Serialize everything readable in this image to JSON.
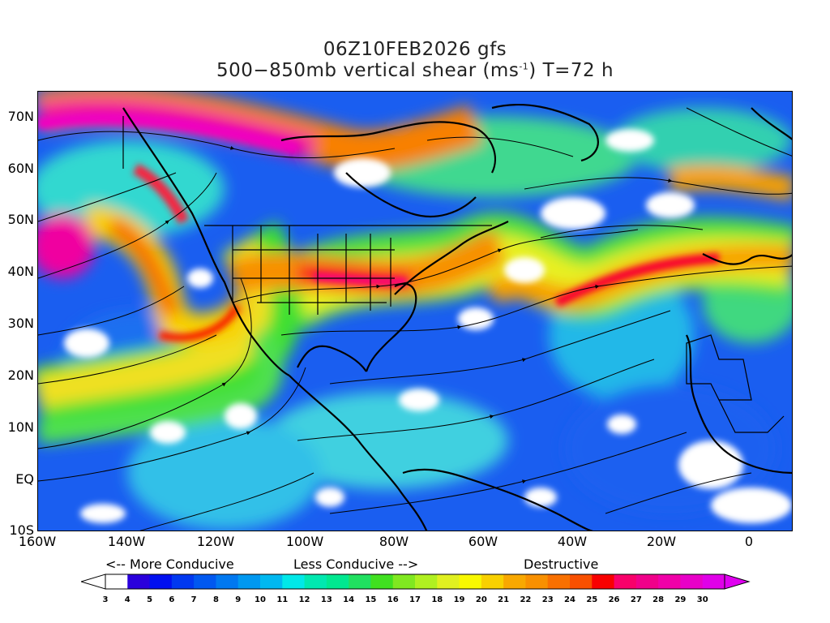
{
  "header": {
    "title_line1": "06Z10FEB2026 gfs",
    "title_line2_prefix": "500−850mb vertical shear (ms",
    "title_line2_sup": "-1",
    "title_line2_suffix": ") T=72 h"
  },
  "axes": {
    "lat_labels": [
      "70N",
      "60N",
      "50N",
      "40N",
      "30N",
      "20N",
      "10N",
      "EQ",
      "10S"
    ],
    "lat_values": [
      70,
      60,
      50,
      40,
      30,
      20,
      10,
      0,
      -10
    ],
    "lon_labels": [
      "160W",
      "140W",
      "120W",
      "100W",
      "80W",
      "60W",
      "40W",
      "20W",
      "0"
    ],
    "lon_values": [
      -160,
      -140,
      -120,
      -100,
      -80,
      -60,
      -40,
      -20,
      0
    ],
    "lon_range": [
      -160,
      10
    ],
    "lat_range": [
      -10,
      75
    ]
  },
  "legend": {
    "more_conducive": "<-- More Conducive",
    "less_conducive": "Less Conducive -->",
    "destructive": "Destructive",
    "levels": [
      "3",
      "4",
      "5",
      "6",
      "7",
      "8",
      "9",
      "10",
      "11",
      "12",
      "13",
      "14",
      "15",
      "16",
      "17",
      "18",
      "19",
      "20",
      "21",
      "22",
      "23",
      "24",
      "25",
      "26",
      "27",
      "28",
      "29",
      "30"
    ],
    "colors": [
      "#ffffff",
      "#2a00dc",
      "#0010f0",
      "#0038f0",
      "#0058f0",
      "#0078f0",
      "#0098f0",
      "#00b8f0",
      "#00e8e8",
      "#00e8b0",
      "#00e890",
      "#20e060",
      "#40e020",
      "#80e820",
      "#b0f020",
      "#e0f020",
      "#f8f800",
      "#f8d000",
      "#f8a800",
      "#f89000",
      "#f87000",
      "#f85000",
      "#f80000",
      "#f8006a",
      "#f0008a",
      "#f000a8",
      "#e800c8",
      "#e000e8",
      "#e000f0"
    ],
    "left_arrow_color": "#ffffff",
    "right_arrow_color": "#e000f0"
  }
}
